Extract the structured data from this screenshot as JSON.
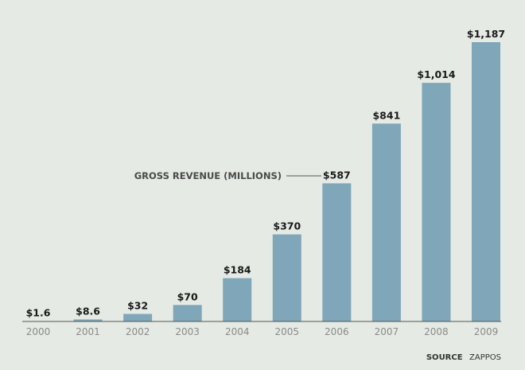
{
  "chart_data": {
    "type": "bar",
    "categories": [
      "2000",
      "2001",
      "2002",
      "2003",
      "2004",
      "2005",
      "2006",
      "2007",
      "2008",
      "2009"
    ],
    "values": [
      1.6,
      8.6,
      32,
      70,
      184,
      370,
      587,
      841,
      1014,
      1187
    ],
    "value_labels": [
      "$1.6",
      "$8.6",
      "$32",
      "$70",
      "$184",
      "$370",
      "$587",
      "$841",
      "$1,014",
      "$1,187"
    ],
    "ylim": [
      0,
      1187
    ],
    "grid": false,
    "bar_color": "#7fa6b9",
    "annotation": "GROSS REVENUE (MILLIONS)",
    "annotation_target": "2006"
  },
  "source": {
    "label": "SOURCE",
    "value": "ZAPPOS"
  },
  "colors": {
    "background": "#e5eae4",
    "bar": "#7fa6b9",
    "axis": "#555555",
    "tick_text": "#8a8a8a"
  }
}
